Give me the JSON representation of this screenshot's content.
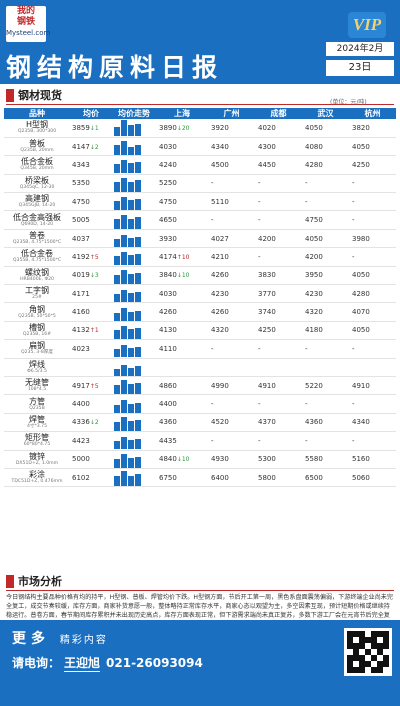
{
  "header": {
    "logo_line1": "我的",
    "logo_line2": "钢铁",
    "logo_domain": "Mysteel.com",
    "vip_label": "VIP",
    "title": "钢结构原料日报",
    "date_label": "2024年2月",
    "day_label": "23日"
  },
  "section_prices": {
    "title": "钢材现货",
    "unit": "(单位：元/吨)"
  },
  "table": {
    "headers": [
      "品种",
      "均价",
      "均价走势",
      "上海",
      "广州",
      "成都",
      "武汉",
      "杭州"
    ],
    "rows": [
      {
        "name": "H型钢",
        "spec": "Q235B, 300*300",
        "avg": "3859",
        "chg": "↓1",
        "dir": "down",
        "trend": [
          0.55,
          1.0,
          0.7,
          0.75
        ],
        "sh": "3890",
        "sh_chg": "↓20",
        "sh_dir": "down",
        "gz": "3920",
        "cd": "4020",
        "wh": "4050",
        "hz": "3820"
      },
      {
        "name": "普板",
        "spec": "Q235B, 20mm",
        "avg": "4147",
        "chg": "↓2",
        "dir": "down",
        "trend": [
          0.6,
          0.9,
          0.5,
          0.65
        ],
        "sh": "4030",
        "sh_chg": "",
        "sh_dir": "",
        "gz": "4340",
        "cd": "4300",
        "wh": "4080",
        "hz": "4050"
      },
      {
        "name": "低合金板",
        "spec": "Q345B, 20mm",
        "avg": "4343",
        "chg": "",
        "dir": "",
        "trend": [
          0.55,
          0.8,
          0.6,
          0.7
        ],
        "sh": "4240",
        "sh_chg": "",
        "sh_dir": "",
        "gz": "4500",
        "cd": "4450",
        "wh": "4280",
        "hz": "4250"
      },
      {
        "name": "桥梁板",
        "spec": "Q345qC, 12-30",
        "avg": "5350",
        "chg": "",
        "dir": "",
        "trend": [
          0.6,
          0.85,
          0.65,
          0.75
        ],
        "sh": "5250",
        "sh_chg": "",
        "sh_dir": "",
        "gz": "-",
        "cd": "-",
        "wh": "-",
        "hz": "-"
      },
      {
        "name": "高建钢",
        "spec": "Q345GJB, 14-20",
        "avg": "4750",
        "chg": "",
        "dir": "",
        "trend": [
          0.55,
          0.8,
          0.6,
          0.7
        ],
        "sh": "4750",
        "sh_chg": "",
        "sh_dir": "",
        "gz": "5110",
        "cd": "-",
        "wh": "-",
        "hz": "-"
      },
      {
        "name": "低合金高强板",
        "spec": "Q690D, 14-20",
        "avg": "5005",
        "chg": "",
        "dir": "",
        "trend": [
          0.6,
          0.85,
          0.65,
          0.75
        ],
        "sh": "4650",
        "sh_chg": "",
        "sh_dir": "",
        "gz": "-",
        "cd": "-",
        "wh": "4750",
        "hz": "-"
      },
      {
        "name": "普卷",
        "spec": "Q235B, 4.75*1500*C",
        "avg": "4037",
        "chg": "",
        "dir": "",
        "trend": [
          0.5,
          0.75,
          0.55,
          0.65
        ],
        "sh": "3930",
        "sh_chg": "",
        "sh_dir": "",
        "gz": "4027",
        "cd": "4200",
        "wh": "4050",
        "hz": "3980"
      },
      {
        "name": "低合金卷",
        "spec": "Q355B, 4.75*1500*C",
        "avg": "4192",
        "chg": "↑5",
        "dir": "up",
        "trend": [
          0.55,
          0.8,
          0.6,
          0.7
        ],
        "sh": "4174",
        "sh_chg": "↑10",
        "sh_dir": "up",
        "gz": "4210",
        "cd": "-",
        "wh": "4200",
        "hz": "-"
      },
      {
        "name": "螺纹钢",
        "spec": "HRB400E, Φ20",
        "avg": "4019",
        "chg": "↓3",
        "dir": "down",
        "trend": [
          0.55,
          0.85,
          0.6,
          0.7
        ],
        "sh": "3840",
        "sh_chg": "↓10",
        "sh_dir": "down",
        "gz": "4260",
        "cd": "3830",
        "wh": "3950",
        "hz": "4050"
      },
      {
        "name": "工字钢",
        "spec": "25#",
        "avg": "4171",
        "chg": "",
        "dir": "",
        "trend": [
          0.5,
          0.75,
          0.55,
          0.65
        ],
        "sh": "4030",
        "sh_chg": "",
        "sh_dir": "",
        "gz": "4230",
        "cd": "3770",
        "wh": "4230",
        "hz": "4280"
      },
      {
        "name": "角钢",
        "spec": "Q235B, 50*50*5",
        "avg": "4160",
        "chg": "",
        "dir": "",
        "trend": [
          0.5,
          0.8,
          0.55,
          0.65
        ],
        "sh": "4260",
        "sh_chg": "",
        "sh_dir": "",
        "gz": "4260",
        "cd": "3740",
        "wh": "4320",
        "hz": "4070"
      },
      {
        "name": "槽钢",
        "spec": "Q235B, 16#",
        "avg": "4132",
        "chg": "↑1",
        "dir": "up",
        "trend": [
          0.55,
          0.8,
          0.6,
          0.7
        ],
        "sh": "4130",
        "sh_chg": "",
        "sh_dir": "",
        "gz": "4320",
        "cd": "4250",
        "wh": "4180",
        "hz": "4050"
      },
      {
        "name": "扁钢",
        "spec": "Q235, 3-8厚度",
        "avg": "4023",
        "chg": "",
        "dir": "",
        "trend": [
          0.5,
          0.75,
          0.55,
          0.65
        ],
        "sh": "4110",
        "sh_chg": "",
        "sh_dir": "",
        "gz": "-",
        "cd": "-",
        "wh": "-",
        "hz": "-"
      },
      {
        "name": "焊线",
        "spec": "Φ6.5/3.5",
        "avg": "",
        "chg": "",
        "dir": "",
        "trend": [
          0.45,
          0.7,
          0.5,
          0.6
        ],
        "sh": "",
        "sh_chg": "",
        "sh_dir": "",
        "gz": "",
        "cd": "",
        "wh": "",
        "hz": ""
      },
      {
        "name": "无缝管",
        "spec": "108*4.5",
        "avg": "4917",
        "chg": "↑5",
        "dir": "up",
        "trend": [
          0.55,
          0.85,
          0.6,
          0.7
        ],
        "sh": "4860",
        "sh_chg": "",
        "sh_dir": "",
        "gz": "4990",
        "cd": "4910",
        "wh": "5220",
        "hz": "4910"
      },
      {
        "name": "方管",
        "spec": "Q235B",
        "avg": "4400",
        "chg": "",
        "dir": "",
        "trend": [
          0.5,
          0.8,
          0.55,
          0.65
        ],
        "sh": "4400",
        "sh_chg": "",
        "sh_dir": "",
        "gz": "-",
        "cd": "-",
        "wh": "-",
        "hz": "-"
      },
      {
        "name": "焊管",
        "spec": "4寸*3.75",
        "avg": "4336",
        "chg": "↓2",
        "dir": "down",
        "trend": [
          0.55,
          0.85,
          0.6,
          0.7
        ],
        "sh": "4360",
        "sh_chg": "",
        "sh_dir": "",
        "gz": "4520",
        "cd": "4370",
        "wh": "4360",
        "hz": "4340"
      },
      {
        "name": "矩形管",
        "spec": "60*80*4.75",
        "avg": "4423",
        "chg": "",
        "dir": "",
        "trend": [
          0.5,
          0.75,
          0.55,
          0.65
        ],
        "sh": "4435",
        "sh_chg": "",
        "sh_dir": "",
        "gz": "-",
        "cd": "-",
        "wh": "-",
        "hz": "-"
      },
      {
        "name": "镀锌",
        "spec": "DX51D+Z, 1.0mm",
        "avg": "5000",
        "chg": "",
        "dir": "",
        "trend": [
          0.55,
          0.9,
          0.6,
          0.7
        ],
        "sh": "4840",
        "sh_chg": "↓10",
        "sh_dir": "down",
        "gz": "4930",
        "cd": "5300",
        "wh": "5580",
        "hz": "5160"
      },
      {
        "name": "彩涂",
        "spec": "TDC51D+Z, 0.476mm",
        "avg": "6102",
        "chg": "",
        "dir": "",
        "trend": [
          0.6,
          0.95,
          0.65,
          0.75
        ],
        "sh": "6750",
        "sh_chg": "",
        "sh_dir": "",
        "gz": "6400",
        "cd": "5800",
        "wh": "6500",
        "hz": "5060"
      }
    ]
  },
  "section_analysis": {
    "title": "市场分析",
    "text": "今日钢结构主要品种价格有均的持平，H型钢、普板、焊管均价下跌。H型钢方面，节后开工第一周，黑色系盘面震荡偏弱，下游终端企业尚未完全复工，成交节奏较缓，库存方面，商家补货意愿一般，整体略持正常库存水平，商家心态以观望为主，多空因素互现，预计短期价格或继续持稳运行。普卷方面，春节期间库存累积并未出现历史高点，库存方面表现正常，但下游需求端尚未真正复苏，多数下游工厂会在元宵节后完全复工，预计短期普卷价格窄幅震荡运行。"
  },
  "footer": {
    "more_label": "更多",
    "more_sub": "精彩内容",
    "contact_label": "请电询：",
    "contact_name": "王迎旭",
    "contact_phone": "021-26093094"
  },
  "colors": {
    "brand_blue": "#1a6fc0",
    "accent_red": "#c0282a",
    "down_green": "#2e9c3a"
  }
}
